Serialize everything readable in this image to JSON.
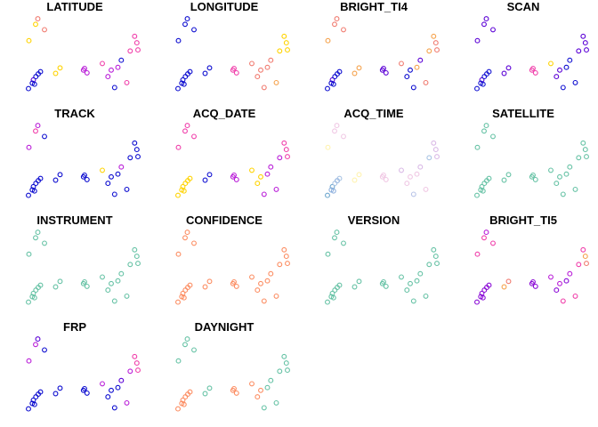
{
  "chart_data": {
    "type": "scatter",
    "layout": {
      "columns": 4,
      "rows": 4
    },
    "marker": "open-circle",
    "points": [
      {
        "x": 1,
        "y": 10
      },
      {
        "x": 4,
        "y": 13
      },
      {
        "x": 5,
        "y": 14
      },
      {
        "x": 8,
        "y": 12
      },
      {
        "x": 13,
        "y": 4
      },
      {
        "x": 15,
        "y": 5
      },
      {
        "x": 3,
        "y": 2.8
      },
      {
        "x": 3.5,
        "y": 2
      },
      {
        "x": 5.2,
        "y": 3.9
      },
      {
        "x": 6.2,
        "y": 4.3
      },
      {
        "x": 0.8,
        "y": 1.2
      },
      {
        "x": 4.1,
        "y": 3.4
      },
      {
        "x": 2.5,
        "y": 2.2
      },
      {
        "x": 26,
        "y": 4.9
      },
      {
        "x": 27.1,
        "y": 4.1
      },
      {
        "x": 25.5,
        "y": 4.6
      },
      {
        "x": 36.5,
        "y": 3.4
      },
      {
        "x": 38,
        "y": 4.6
      },
      {
        "x": 34,
        "y": 5.8
      },
      {
        "x": 39.5,
        "y": 1.4
      },
      {
        "x": 42.5,
        "y": 6.4
      },
      {
        "x": 45,
        "y": 2.3
      },
      {
        "x": 46.5,
        "y": 8.1
      },
      {
        "x": 48.5,
        "y": 10.8
      },
      {
        "x": 49.5,
        "y": 9.6
      },
      {
        "x": 50,
        "y": 8.3
      },
      {
        "x": 41,
        "y": 5.1
      }
    ],
    "panels": [
      {
        "title": "LATITUDE",
        "colors": [
          "#FFD300",
          "#FFD300",
          "#F07A6F",
          "#F07A6F",
          "#FFD300",
          "#FFD300",
          "#5B00D6",
          "#1212D2",
          "#0A0ACF",
          "#0A0ACF",
          "#0A0ACF",
          "#0A0ACF",
          "#0A0ACF",
          "#B91DD8",
          "#B91DD8",
          "#B91DD8",
          "#B91DD8",
          "#B91DD8",
          "#F03FAA",
          "#1212D2",
          "#1212D2",
          "#F03FAA",
          "#F03FAA",
          "#F03FAA",
          "#F03FAA",
          "#F03FAA",
          "#B91DD8"
        ]
      },
      {
        "title": "LONGITUDE",
        "colors": [
          "#0A0ACF",
          "#0A0ACF",
          "#0A0ACF",
          "#0A0ACF",
          "#0A0ACF",
          "#0A0ACF",
          "#0A0ACF",
          "#0A0ACF",
          "#0A0ACF",
          "#0A0ACF",
          "#0A0ACF",
          "#0A0ACF",
          "#0A0ACF",
          "#F03FAA",
          "#F03FAA",
          "#F03FAA",
          "#F07A6F",
          "#F07A6F",
          "#F07A6F",
          "#F07A6F",
          "#F07A6F",
          "#F5A24C",
          "#FFD300",
          "#FFD300",
          "#FFD300",
          "#FFD300",
          "#F07A6F"
        ]
      },
      {
        "title": "BRIGHT_TI4",
        "colors": [
          "#F5A24C",
          "#F07A6F",
          "#F07A6F",
          "#F07A6F",
          "#F5A24C",
          "#F5A24C",
          "#5B00D6",
          "#0A0ACF",
          "#0A0ACF",
          "#0A0ACF",
          "#0A0ACF",
          "#0A0ACF",
          "#0A0ACF",
          "#5B00D6",
          "#5B00D6",
          "#5B00D6",
          "#0A0ACF",
          "#0A0ACF",
          "#F07A6F",
          "#0A0ACF",
          "#5B00D6",
          "#F07A6F",
          "#F5A24C",
          "#F5A24C",
          "#F07A6F",
          "#F07A6F",
          "#F5A24C"
        ]
      },
      {
        "title": "SCAN",
        "colors": [
          "#5B00D6",
          "#5B00D6",
          "#5B00D6",
          "#5B00D6",
          "#5B00D6",
          "#5B00D6",
          "#5B00D6",
          "#1212D2",
          "#1212D2",
          "#1212D2",
          "#1212D2",
          "#1212D2",
          "#1212D2",
          "#F03FAA",
          "#F03FAA",
          "#F03FAA",
          "#5B00D6",
          "#5B00D6",
          "#FFD300",
          "#1212D2",
          "#1212D2",
          "#0A0ACF",
          "#5B00D6",
          "#5B00D6",
          "#5B00D6",
          "#5B00D6",
          "#0A0ACF"
        ]
      },
      {
        "title": "TRACK",
        "colors": [
          "#B91DD8",
          "#F03FAA",
          "#B91DD8",
          "#0A0ACF",
          "#0A0ACF",
          "#0A0ACF",
          "#0A0ACF",
          "#0A0ACF",
          "#0A0ACF",
          "#0A0ACF",
          "#0A0ACF",
          "#0A0ACF",
          "#0A0ACF",
          "#0A0ACF",
          "#0A0ACF",
          "#0A0ACF",
          "#0A0ACF",
          "#0A0ACF",
          "#FFD300",
          "#1212D2",
          "#B91DD8",
          "#0A0ACF",
          "#0A0ACF",
          "#0A0ACF",
          "#0A0ACF",
          "#0A0ACF",
          "#0A0ACF"
        ]
      },
      {
        "title": "ACQ_DATE",
        "colors": [
          "#F03FAA",
          "#F03FAA",
          "#F03FAA",
          "#F03FAA",
          "#1212D2",
          "#1212D2",
          "#FFD300",
          "#FFD300",
          "#FFD300",
          "#FFD300",
          "#FFD300",
          "#FFD300",
          "#FFD300",
          "#B91DD8",
          "#B91DD8",
          "#B91DD8",
          "#FFD300",
          "#FFD300",
          "#FFD300",
          "#B91DD8",
          "#B91DD8",
          "#B91DD8",
          "#B91DD8",
          "#F03FAA",
          "#F03FAA",
          "#F03FAA",
          "#B91DD8"
        ]
      },
      {
        "title": "ACQ_TIME",
        "colors": [
          "#FFF3B0",
          "#F0C8E4",
          "#F0C8E4",
          "#F0C8E4",
          "#FFF3B0",
          "#FFF3B0",
          "#6CA6CD",
          "#8DB0DE",
          "#8DB0DE",
          "#A9C4E4",
          "#6CA6CD",
          "#A9C4E4",
          "#8DB0DE",
          "#F0C8E4",
          "#F0C8E4",
          "#F0C8E4",
          "#F0C8E4",
          "#F0C8E4",
          "#D9B9E6",
          "#B8C4E8",
          "#D9B9E6",
          "#F0C8E4",
          "#A9C4E4",
          "#D9B9E6",
          "#D9B9E6",
          "#D9B9E6",
          "#F0C8E4"
        ]
      },
      {
        "title": "SATELLITE",
        "colors": [
          "#66C2A5",
          "#66C2A5",
          "#66C2A5",
          "#66C2A5",
          "#66C2A5",
          "#66C2A5",
          "#66C2A5",
          "#66C2A5",
          "#66C2A5",
          "#66C2A5",
          "#66C2A5",
          "#66C2A5",
          "#66C2A5",
          "#66C2A5",
          "#66C2A5",
          "#66C2A5",
          "#66C2A5",
          "#66C2A5",
          "#66C2A5",
          "#66C2A5",
          "#66C2A5",
          "#66C2A5",
          "#66C2A5",
          "#66C2A5",
          "#66C2A5",
          "#66C2A5",
          "#66C2A5"
        ]
      },
      {
        "title": "INSTRUMENT",
        "colors": [
          "#66C2A5",
          "#66C2A5",
          "#66C2A5",
          "#66C2A5",
          "#66C2A5",
          "#66C2A5",
          "#66C2A5",
          "#66C2A5",
          "#66C2A5",
          "#66C2A5",
          "#66C2A5",
          "#66C2A5",
          "#66C2A5",
          "#66C2A5",
          "#66C2A5",
          "#66C2A5",
          "#66C2A5",
          "#66C2A5",
          "#66C2A5",
          "#66C2A5",
          "#66C2A5",
          "#66C2A5",
          "#66C2A5",
          "#66C2A5",
          "#66C2A5",
          "#66C2A5",
          "#66C2A5"
        ]
      },
      {
        "title": "CONFIDENCE",
        "colors": [
          "#FC8D62",
          "#FC8D62",
          "#FC8D62",
          "#FC8D62",
          "#FC8D62",
          "#FC8D62",
          "#FC8D62",
          "#FC8D62",
          "#FC8D62",
          "#FC8D62",
          "#FC8D62",
          "#FC8D62",
          "#FC8D62",
          "#FC8D62",
          "#FC8D62",
          "#FC8D62",
          "#FC8D62",
          "#FC8D62",
          "#FC8D62",
          "#FC8D62",
          "#FC8D62",
          "#FC8D62",
          "#FC8D62",
          "#FC8D62",
          "#FC8D62",
          "#FC8D62",
          "#FC8D62"
        ]
      },
      {
        "title": "VERSION",
        "colors": [
          "#66C2A5",
          "#66C2A5",
          "#66C2A5",
          "#66C2A5",
          "#66C2A5",
          "#66C2A5",
          "#66C2A5",
          "#66C2A5",
          "#66C2A5",
          "#66C2A5",
          "#66C2A5",
          "#66C2A5",
          "#66C2A5",
          "#66C2A5",
          "#66C2A5",
          "#66C2A5",
          "#66C2A5",
          "#66C2A5",
          "#66C2A5",
          "#66C2A5",
          "#66C2A5",
          "#66C2A5",
          "#66C2A5",
          "#66C2A5",
          "#66C2A5",
          "#66C2A5",
          "#66C2A5"
        ]
      },
      {
        "title": "BRIGHT_TI5",
        "colors": [
          "#F03FAA",
          "#F03FAA",
          "#B91DD8",
          "#F03FAA",
          "#F5A24C",
          "#F07A6F",
          "#8A0AD6",
          "#8A0AD6",
          "#8A0AD6",
          "#8A0AD6",
          "#8A0AD6",
          "#8A0AD6",
          "#8A0AD6",
          "#8A0AD6",
          "#8A0AD6",
          "#8A0AD6",
          "#8A0AD6",
          "#B91DD8",
          "#B91DD8",
          "#F03FAA",
          "#B91DD8",
          "#F03FAA",
          "#F03FAA",
          "#F03FAA",
          "#F5A24C",
          "#F07A6F",
          "#8A0AD6"
        ]
      },
      {
        "title": "FRP",
        "colors": [
          "#B91DD8",
          "#B91DD8",
          "#5B00D6",
          "#0A0ACF",
          "#0A0ACF",
          "#0A0ACF",
          "#0A0ACF",
          "#0A0ACF",
          "#0A0ACF",
          "#0A0ACF",
          "#0A0ACF",
          "#0A0ACF",
          "#0A0ACF",
          "#0A0ACF",
          "#0A0ACF",
          "#0A0ACF",
          "#0A0ACF",
          "#0A0ACF",
          "#B91DD8",
          "#0A0ACF",
          "#5B00D6",
          "#B91DD8",
          "#B91DD8",
          "#F03FAA",
          "#F03FAA",
          "#F03FAA",
          "#0A0ACF"
        ]
      },
      {
        "title": "DAYNIGHT",
        "colors": [
          "#66C2A5",
          "#66C2A5",
          "#66C2A5",
          "#66C2A5",
          "#66C2A5",
          "#66C2A5",
          "#FC8D62",
          "#FC8D62",
          "#FC8D62",
          "#FC8D62",
          "#FC8D62",
          "#FC8D62",
          "#FC8D62",
          "#FC8D62",
          "#FC8D62",
          "#FC8D62",
          "#FC8D62",
          "#FC8D62",
          "#FC8D62",
          "#66C2A5",
          "#66C2A5",
          "#66C2A5",
          "#66C2A5",
          "#66C2A5",
          "#66C2A5",
          "#66C2A5",
          "#66C2A5"
        ]
      }
    ]
  }
}
